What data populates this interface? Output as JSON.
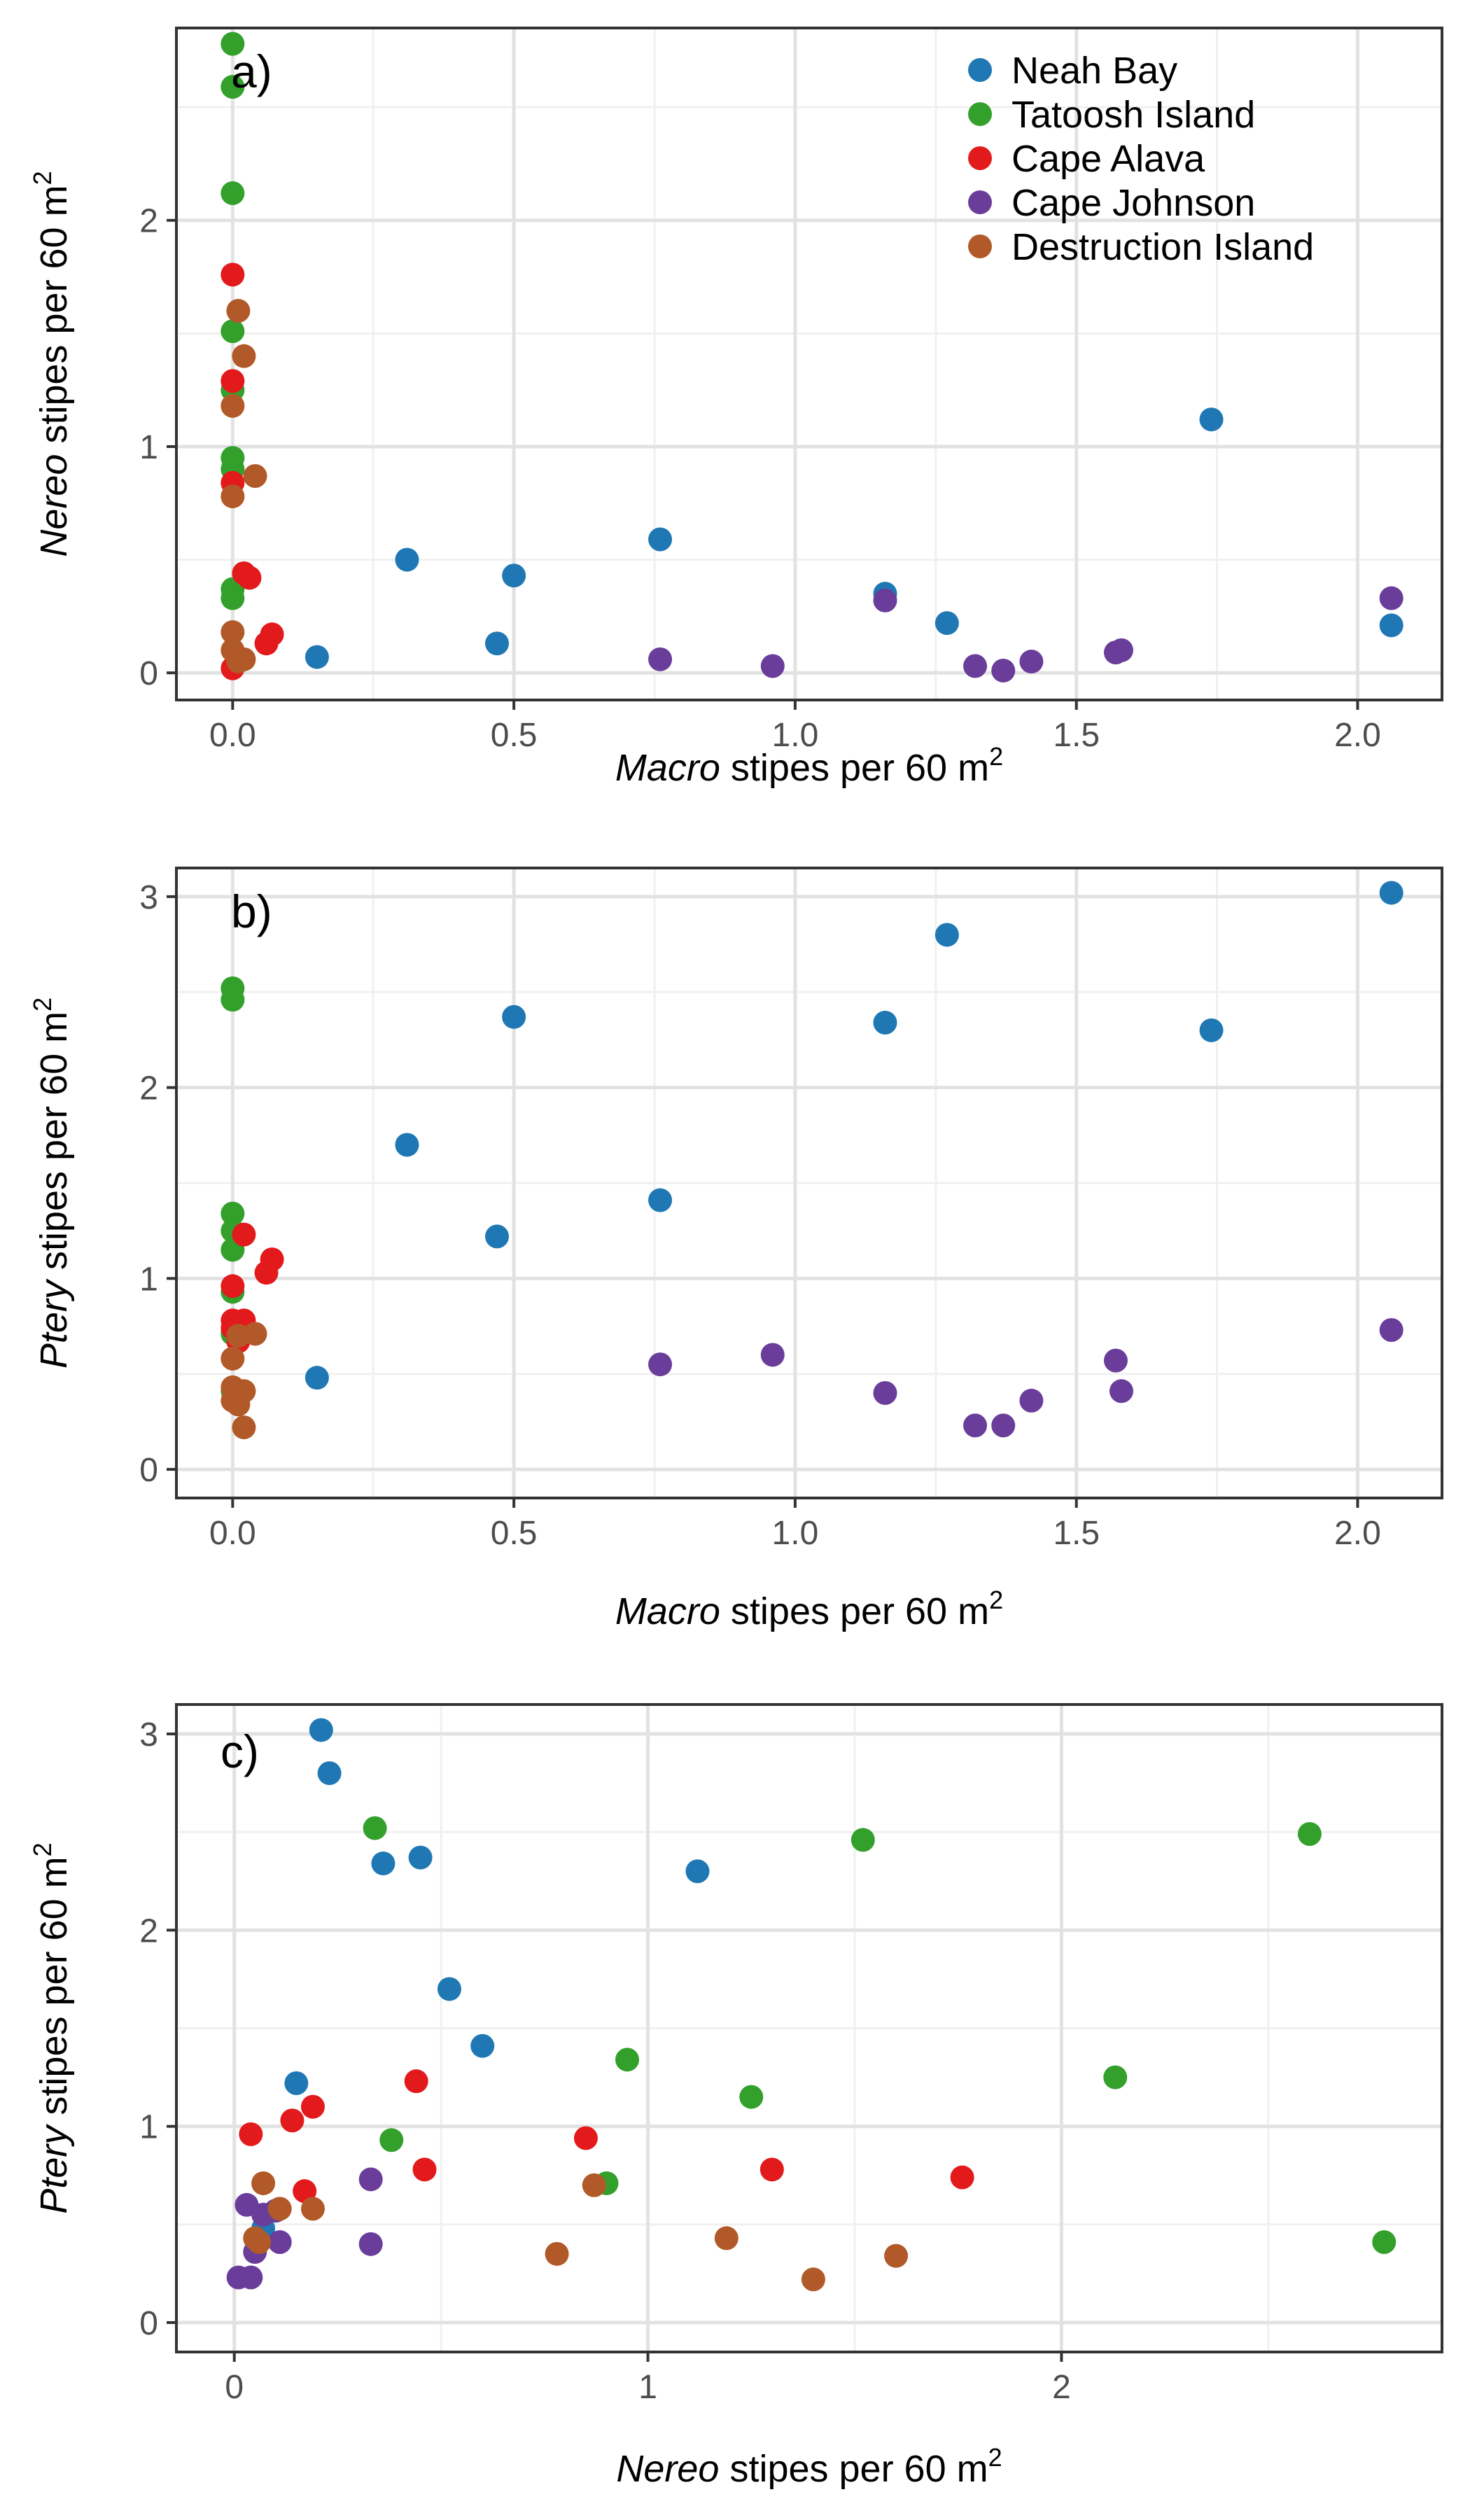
{
  "legend": {
    "placement": "top-right of panel a",
    "entries": [
      {
        "name": "Neah Bay",
        "color": "#1f78b4"
      },
      {
        "name": "Tatoosh Island",
        "color": "#33a02c"
      },
      {
        "name": "Cape Alava",
        "color": "#e31a1c"
      },
      {
        "name": "Cape Johnson",
        "color": "#6a3d9a"
      },
      {
        "name": "Destruction Island",
        "color": "#b15928"
      }
    ]
  },
  "chart_data": [
    {
      "type": "scatter",
      "panel_label": "a)",
      "xlabel": {
        "italic": "Macro",
        "rest": " stipes per 60 m",
        "sup": "2"
      },
      "ylabel": {
        "italic": "Nereo",
        "rest": " stipes per 60 m",
        "sup": "2"
      },
      "xlim": [
        -0.1,
        2.15
      ],
      "ylim": [
        -0.12,
        2.85
      ],
      "xticks": [
        0,
        0.5,
        1,
        1.5,
        2
      ],
      "xtick_labels": [
        "0.0",
        "0.5",
        "1.0",
        "1.5",
        "2.0"
      ],
      "xminor": [
        0.25,
        0.75,
        1.25,
        1.75
      ],
      "yticks": [
        0,
        1,
        2
      ],
      "ytick_labels": [
        "0",
        "1",
        "2"
      ],
      "yminor": [
        0.5,
        1.5,
        2.5
      ],
      "grid": true,
      "series": [
        {
          "name": "Neah Bay",
          "points": [
            [
              0.15,
              0.07
            ],
            [
              0.31,
              0.5
            ],
            [
              0.47,
              0.13
            ],
            [
              0.5,
              0.43
            ],
            [
              0.76,
              0.59
            ],
            [
              1.16,
              0.35
            ],
            [
              1.27,
              0.22
            ],
            [
              1.74,
              1.12
            ],
            [
              2.06,
              0.21
            ]
          ]
        },
        {
          "name": "Tatoosh Island",
          "points": [
            [
              0,
              2.78
            ],
            [
              0,
              2.59
            ],
            [
              0,
              2.12
            ],
            [
              0,
              1.51
            ],
            [
              0,
              1.25
            ],
            [
              0,
              0.95
            ],
            [
              0,
              0.9
            ],
            [
              0,
              0.37
            ],
            [
              0,
              0.33
            ]
          ]
        },
        {
          "name": "Cape Alava",
          "points": [
            [
              0,
              1.76
            ],
            [
              0,
              1.29
            ],
            [
              0,
              0.84
            ],
            [
              0,
              0.02
            ],
            [
              0.02,
              0.44
            ],
            [
              0.03,
              0.42
            ],
            [
              0.06,
              0.13
            ],
            [
              0.07,
              0.17
            ]
          ]
        },
        {
          "name": "Cape Johnson",
          "points": [
            [
              0.76,
              0.06
            ],
            [
              0.96,
              0.03
            ],
            [
              1.16,
              0.32
            ],
            [
              1.32,
              0.03
            ],
            [
              1.37,
              0.01
            ],
            [
              1.42,
              0.05
            ],
            [
              1.57,
              0.09
            ],
            [
              1.58,
              0.1
            ],
            [
              2.06,
              0.33
            ]
          ]
        },
        {
          "name": "Destruction Island",
          "points": [
            [
              0,
              0.78
            ],
            [
              0,
              1.18
            ],
            [
              0,
              0.18
            ],
            [
              0,
              0.1
            ],
            [
              0.01,
              1.6
            ],
            [
              0.02,
              1.4
            ],
            [
              0.04,
              0.87
            ],
            [
              0.01,
              0.05
            ],
            [
              0.02,
              0.06
            ]
          ]
        }
      ]
    },
    {
      "type": "scatter",
      "panel_label": "b)",
      "xlabel": {
        "italic": "Macro",
        "rest": " stipes per 60 m",
        "sup": "2"
      },
      "ylabel": {
        "italic": "Ptery",
        "rest": " stipes per 60 m",
        "sup": "2"
      },
      "xlim": [
        -0.1,
        2.15
      ],
      "ylim": [
        -0.15,
        3.15
      ],
      "xticks": [
        0,
        0.5,
        1,
        1.5,
        2
      ],
      "xtick_labels": [
        "0.0",
        "0.5",
        "1.0",
        "1.5",
        "2.0"
      ],
      "xminor": [
        0.25,
        0.75,
        1.25,
        1.75
      ],
      "yticks": [
        0,
        1,
        2,
        3
      ],
      "ytick_labels": [
        "0",
        "1",
        "2",
        "3"
      ],
      "yminor": [
        0.5,
        1.5,
        2.5
      ],
      "grid": true,
      "series": [
        {
          "name": "Neah Bay",
          "points": [
            [
              0.15,
              0.48
            ],
            [
              0.31,
              1.7
            ],
            [
              0.47,
              1.22
            ],
            [
              0.5,
              2.37
            ],
            [
              0.76,
              1.41
            ],
            [
              1.16,
              2.34
            ],
            [
              1.27,
              2.8
            ],
            [
              1.74,
              2.3
            ],
            [
              2.06,
              3.02
            ]
          ]
        },
        {
          "name": "Tatoosh Island",
          "points": [
            [
              0,
              2.52
            ],
            [
              0,
              2.46
            ],
            [
              0,
              1.34
            ],
            [
              0,
              1.25
            ],
            [
              0,
              1.15
            ],
            [
              0,
              0.93
            ],
            [
              0,
              0.72
            ],
            [
              0,
              0.71
            ],
            [
              0,
              0.41
            ]
          ]
        },
        {
          "name": "Cape Alava",
          "points": [
            [
              0,
              0.96
            ],
            [
              0,
              0.78
            ],
            [
              0,
              0.74
            ],
            [
              0.02,
              1.23
            ],
            [
              0.02,
              0.78
            ],
            [
              0.06,
              1.03
            ],
            [
              0.07,
              1.1
            ],
            [
              0.01,
              0.67
            ]
          ]
        },
        {
          "name": "Cape Johnson",
          "points": [
            [
              0.76,
              0.55
            ],
            [
              0.96,
              0.6
            ],
            [
              1.16,
              0.4
            ],
            [
              1.32,
              0.23
            ],
            [
              1.37,
              0.23
            ],
            [
              1.42,
              0.36
            ],
            [
              1.57,
              0.57
            ],
            [
              1.58,
              0.41
            ],
            [
              2.06,
              0.73
            ]
          ]
        },
        {
          "name": "Destruction Island",
          "points": [
            [
              0,
              0.58
            ],
            [
              0,
              0.43
            ],
            [
              0,
              0.36
            ],
            [
              0.01,
              0.34
            ],
            [
              0.01,
              0.7
            ],
            [
              0.02,
              0.41
            ],
            [
              0.02,
              0.22
            ],
            [
              0.04,
              0.71
            ]
          ]
        }
      ]
    },
    {
      "type": "scatter",
      "panel_label": "c)",
      "xlabel": {
        "italic": "Nereo",
        "rest": " stipes per 60 m",
        "sup": "2"
      },
      "ylabel": {
        "italic": "Ptery",
        "rest": " stipes per 60 m",
        "sup": "2"
      },
      "xlim": [
        -0.14,
        2.92
      ],
      "ylim": [
        -0.15,
        3.15
      ],
      "xticks": [
        0,
        1,
        2
      ],
      "xtick_labels": [
        "0",
        "1",
        "2"
      ],
      "xminor": [
        0.5,
        1.5,
        2.5
      ],
      "yticks": [
        0,
        1,
        2,
        3
      ],
      "ytick_labels": [
        "0",
        "1",
        "2",
        "3"
      ],
      "yminor": [
        0.5,
        1.5,
        2.5
      ],
      "grid": true,
      "series": [
        {
          "name": "Neah Bay",
          "points": [
            [
              0.21,
              3.02
            ],
            [
              0.23,
              2.8
            ],
            [
              0.36,
              2.34
            ],
            [
              0.45,
              2.37
            ],
            [
              0.52,
              1.7
            ],
            [
              0.6,
              1.41
            ],
            [
              1.12,
              2.3
            ],
            [
              0.15,
              1.22
            ],
            [
              0.07,
              0.48
            ]
          ]
        },
        {
          "name": "Tatoosh Island",
          "points": [
            [
              0.34,
              2.52
            ],
            [
              1.52,
              2.46
            ],
            [
              2.6,
              2.49
            ],
            [
              0.95,
              1.34
            ],
            [
              1.25,
              1.15
            ],
            [
              2.13,
              1.25
            ],
            [
              0.38,
              0.93
            ],
            [
              0.9,
              0.71
            ],
            [
              2.78,
              0.41
            ]
          ]
        },
        {
          "name": "Cape Alava",
          "points": [
            [
              0.04,
              0.96
            ],
            [
              0.14,
              1.03
            ],
            [
              0.19,
              1.1
            ],
            [
              0.44,
              1.23
            ],
            [
              0.17,
              0.67
            ],
            [
              0.46,
              0.78
            ],
            [
              0.85,
              0.94
            ],
            [
              1.3,
              0.78
            ],
            [
              1.76,
              0.74
            ]
          ]
        },
        {
          "name": "Cape Johnson",
          "points": [
            [
              0.01,
              0.23
            ],
            [
              0.04,
              0.23
            ],
            [
              0.03,
              0.6
            ],
            [
              0.05,
              0.36
            ],
            [
              0.07,
              0.55
            ],
            [
              0.11,
              0.41
            ],
            [
              0.1,
              0.57
            ],
            [
              0.33,
              0.73
            ],
            [
              0.33,
              0.4
            ]
          ]
        },
        {
          "name": "Destruction Island",
          "points": [
            [
              0.07,
              0.71
            ],
            [
              0.06,
              0.41
            ],
            [
              0.11,
              0.58
            ],
            [
              0.19,
              0.58
            ],
            [
              0.05,
              0.43
            ],
            [
              0.78,
              0.35
            ],
            [
              0.87,
              0.7
            ],
            [
              1.19,
              0.43
            ],
            [
              1.4,
              0.22
            ],
            [
              1.6,
              0.34
            ]
          ]
        }
      ]
    }
  ]
}
